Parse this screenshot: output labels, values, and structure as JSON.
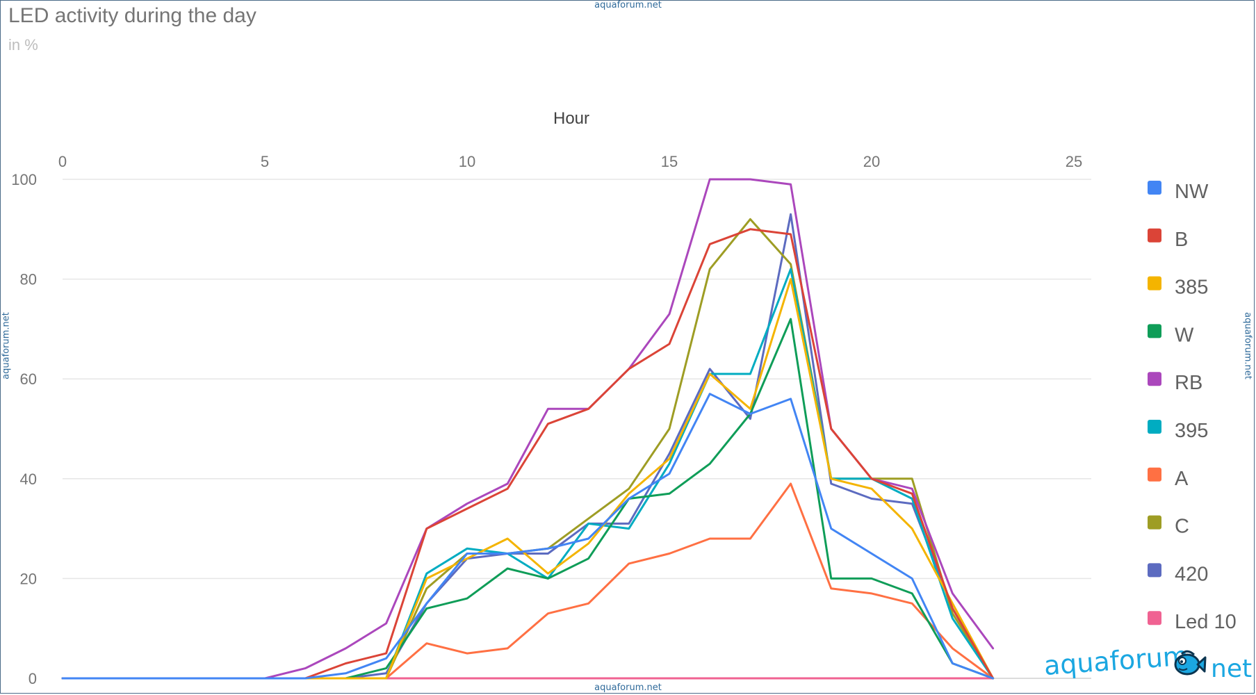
{
  "watermark": "aquaforum.net",
  "logo": {
    "word": "aquaforum",
    "suffix": "net"
  },
  "chart_data": {
    "type": "line",
    "title": "LED activity during the day",
    "subtitle": "in %",
    "xlabel": "Hour",
    "ylabel": "",
    "xlim": [
      0,
      25
    ],
    "ylim": [
      0,
      100
    ],
    "x_ticks": [
      0,
      5,
      10,
      15,
      20,
      25
    ],
    "y_ticks": [
      0,
      20,
      40,
      60,
      80,
      100
    ],
    "x_axis_position": "top",
    "grid": true,
    "legend_position": "right",
    "x": [
      0,
      1,
      2,
      3,
      4,
      5,
      6,
      7,
      8,
      9,
      10,
      11,
      12,
      13,
      14,
      15,
      16,
      17,
      18,
      19,
      20,
      21,
      22,
      23
    ],
    "series": [
      {
        "name": "NW",
        "color": "#4285f4",
        "values": [
          0,
          0,
          0,
          0,
          0,
          0,
          0,
          1,
          4,
          15,
          25,
          25,
          26,
          28,
          36,
          41,
          57,
          53,
          56,
          30,
          25,
          20,
          3,
          0
        ]
      },
      {
        "name": "B",
        "color": "#db4437",
        "values": [
          0,
          0,
          0,
          0,
          0,
          0,
          0,
          3,
          5,
          30,
          34,
          38,
          51,
          54,
          62,
          67,
          87,
          90,
          89,
          50,
          40,
          37,
          14,
          0
        ]
      },
      {
        "name": "385",
        "color": "#f4b400",
        "values": [
          0,
          0,
          0,
          0,
          0,
          0,
          0,
          0,
          0,
          20,
          24,
          28,
          21,
          27,
          37,
          44,
          61,
          54,
          80,
          40,
          38,
          30,
          15,
          0
        ]
      },
      {
        "name": "W",
        "color": "#0f9d58",
        "values": [
          0,
          0,
          0,
          0,
          0,
          0,
          0,
          0,
          2,
          14,
          16,
          22,
          20,
          24,
          36,
          37,
          43,
          53,
          72,
          20,
          20,
          17,
          3,
          0
        ]
      },
      {
        "name": "RB",
        "color": "#ab47bc",
        "values": [
          0,
          0,
          0,
          0,
          0,
          0,
          2,
          6,
          11,
          30,
          35,
          39,
          54,
          54,
          62,
          73,
          100,
          100,
          99,
          50,
          40,
          38,
          17,
          6
        ]
      },
      {
        "name": "395",
        "color": "#00acc1",
        "values": [
          0,
          0,
          0,
          0,
          0,
          0,
          0,
          0,
          0,
          21,
          26,
          25,
          20,
          31,
          30,
          43,
          61,
          61,
          82,
          40,
          40,
          36,
          12,
          0
        ]
      },
      {
        "name": "A",
        "color": "#ff7043",
        "values": [
          0,
          0,
          0,
          0,
          0,
          0,
          0,
          0,
          0,
          7,
          5,
          6,
          13,
          15,
          23,
          25,
          28,
          28,
          39,
          18,
          17,
          15,
          6,
          0
        ]
      },
      {
        "name": "C",
        "color": "#9e9d24",
        "values": [
          0,
          0,
          0,
          0,
          0,
          0,
          0,
          0,
          0,
          18,
          25,
          25,
          26,
          32,
          38,
          50,
          82,
          92,
          83,
          40,
          40,
          40,
          13,
          0
        ]
      },
      {
        "name": "420",
        "color": "#5c6bc0",
        "values": [
          0,
          0,
          0,
          0,
          0,
          0,
          0,
          0,
          1,
          15,
          24,
          25,
          25,
          31,
          31,
          45,
          62,
          52,
          93,
          39,
          36,
          35,
          14,
          0
        ]
      },
      {
        "name": "Led 10",
        "color": "#f06292",
        "values": [
          0,
          0,
          0,
          0,
          0,
          0,
          0,
          0,
          0,
          0,
          0,
          0,
          0,
          0,
          0,
          0,
          0,
          0,
          0,
          0,
          0,
          0,
          0,
          0
        ]
      }
    ]
  }
}
